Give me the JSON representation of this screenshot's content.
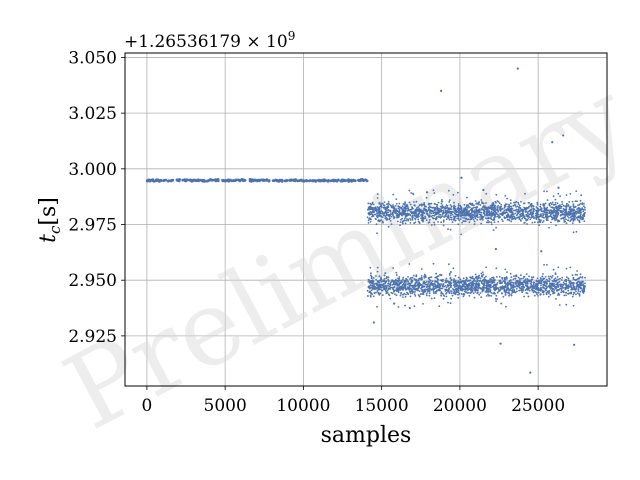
{
  "chart_data": {
    "type": "scatter",
    "title": "",
    "xlabel": "samples",
    "ylabel": "t_c [s]",
    "offset_text": "+1.26536179 × 10^9",
    "watermark": "Preliminary",
    "xlim": [
      -1400,
      29400
    ],
    "ylim": [
      2.9025,
      3.052
    ],
    "x_ticks": [
      0,
      5000,
      10000,
      15000,
      20000,
      25000
    ],
    "x_tick_labels": [
      "0",
      "5000",
      "10000",
      "15000",
      "20000",
      "25000"
    ],
    "y_ticks": [
      2.925,
      2.95,
      2.975,
      3.0,
      3.025,
      3.05
    ],
    "y_tick_labels": [
      "2.925",
      "2.950",
      "2.975",
      "3.000",
      "3.025",
      "3.050"
    ],
    "grid": true,
    "marker_color": "#4c72b0",
    "series": [
      {
        "segments": [
          {
            "x_range": [
              0,
              14100
            ],
            "y_center": 2.9948,
            "y_spread": 0.0004
          },
          {
            "x_range": [
              14100,
              28000
            ],
            "y_center": 2.9805,
            "y_spread": 0.0045
          },
          {
            "x_range": [
              14100,
              28000
            ],
            "y_center": 2.9475,
            "y_spread": 0.0045
          }
        ],
        "outliers": [
          {
            "x": 18800,
            "y": 3.035
          },
          {
            "x": 23700,
            "y": 3.045
          },
          {
            "x": 26600,
            "y": 3.015
          },
          {
            "x": 25900,
            "y": 3.012
          },
          {
            "x": 20100,
            "y": 2.996
          },
          {
            "x": 14500,
            "y": 2.931
          },
          {
            "x": 22600,
            "y": 2.9215
          },
          {
            "x": 27300,
            "y": 2.921
          },
          {
            "x": 24500,
            "y": 2.9085
          },
          {
            "x": 25200,
            "y": 2.963
          },
          {
            "x": 22300,
            "y": 2.964
          },
          {
            "x": 15800,
            "y": 2.9395
          },
          {
            "x": 16800,
            "y": 2.9375
          },
          {
            "x": 21500,
            "y": 2.9905
          },
          {
            "x": 17900,
            "y": 2.9895
          },
          {
            "x": 26300,
            "y": 2.9915
          }
        ]
      }
    ]
  }
}
